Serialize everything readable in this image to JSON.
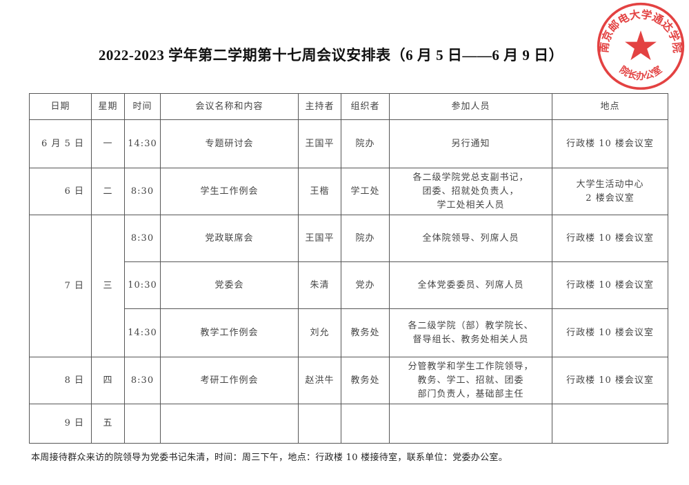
{
  "title": "2022-2023 学年第二学期第十七周会议安排表（6 月 5 日——6 月 9 日）",
  "stamp": {
    "text_top": "南京邮电大学通达学院",
    "text_bottom": "院长办公室",
    "color": "#e02828"
  },
  "headers": [
    "日期",
    "星期",
    "时间",
    "会议名称和内容",
    "主持者",
    "组织者",
    "参加人员",
    "地点"
  ],
  "rows": [
    {
      "date": "6 月 5 日",
      "weekday": "一",
      "time": "14:30",
      "meeting": "专题研讨会",
      "host": "王国平",
      "organizer": "院办",
      "attendees": [
        "另行通知"
      ],
      "location": [
        "行政楼 10 楼会议室"
      ]
    },
    {
      "date": "6 日",
      "weekday": "二",
      "time": "8:30",
      "meeting": "学生工作例会",
      "host": "王楷",
      "organizer": "学工处",
      "attendees": [
        "各二级学院党总支副书记，",
        "团委、招就处负责人，",
        "学工处相关人员"
      ],
      "location": [
        "大学生活动中心",
        "2 楼会议室"
      ]
    },
    {
      "date": "7 日",
      "weekday": "三",
      "time": "8:30",
      "meeting": "党政联席会",
      "host": "王国平",
      "organizer": "院办",
      "attendees": [
        "全体院领导、列席人员"
      ],
      "location": [
        "行政楼 10 楼会议室"
      ]
    },
    {
      "time": "10:30",
      "meeting": "党委会",
      "host": "朱清",
      "organizer": "党办",
      "attendees": [
        "全体党委委员、列席人员"
      ],
      "location": [
        "行政楼 10 楼会议室"
      ]
    },
    {
      "time": "14:30",
      "meeting": "教学工作例会",
      "host": "刘允",
      "organizer": "教务处",
      "attendees": [
        "各二级学院（部）教学院长、",
        "督导组长、教务处相关人员"
      ],
      "location": [
        "行政楼 10 楼会议室"
      ]
    },
    {
      "date": "8 日",
      "weekday": "四",
      "time": "8:30",
      "meeting": "考研工作例会",
      "host": "赵洪牛",
      "organizer": "教务处",
      "attendees": [
        "分管教学和学生工作院领导，",
        "教务、学工、招就、团委",
        "部门负责人，基础部主任"
      ],
      "location": [
        "行政楼 10 楼会议室"
      ]
    },
    {
      "date": "9 日",
      "weekday": "五"
    }
  ],
  "footer": "本周接待群众来访的院领导为党委书记朱清，时间：周三下午，地点：行政楼 10 楼接待室，联系单位：党委办公室。"
}
